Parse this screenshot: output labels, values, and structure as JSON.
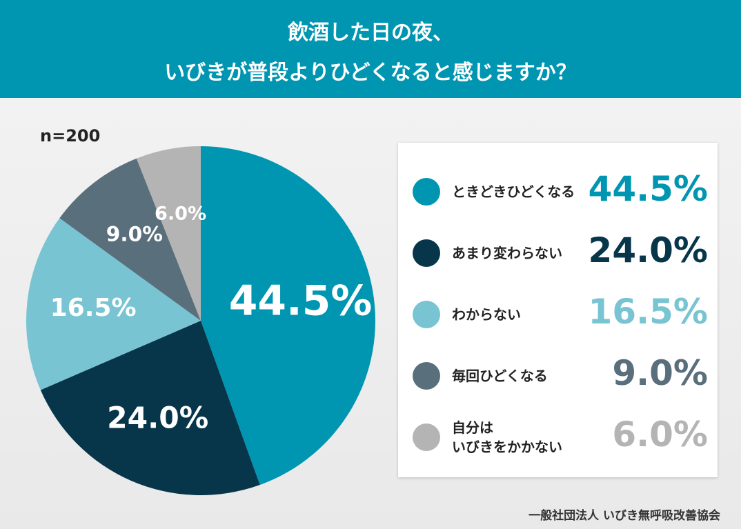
{
  "chart_data": {
    "type": "pie",
    "title": [
      "飲酒した日の夜、",
      "いびきが普段よりひどくなると感じますか？"
    ],
    "subtitle": "n=200",
    "categories": [
      "ときどきひどくなる",
      "あまり変わらない",
      "わからない",
      "毎回ひどくなる",
      "自分は\nいびきをかかない"
    ],
    "values": [
      44.5,
      24.0,
      16.5,
      9.0,
      6.0
    ],
    "value_labels": [
      "44.5%",
      "24.0%",
      "16.5%",
      "9.0%",
      "6.0%"
    ],
    "colors": [
      "#0096b1",
      "#07354a",
      "#78c4d3",
      "#5a6f7c",
      "#b4b4b4"
    ],
    "source": "一般社団法人 いびき無呼吸改善協会"
  }
}
